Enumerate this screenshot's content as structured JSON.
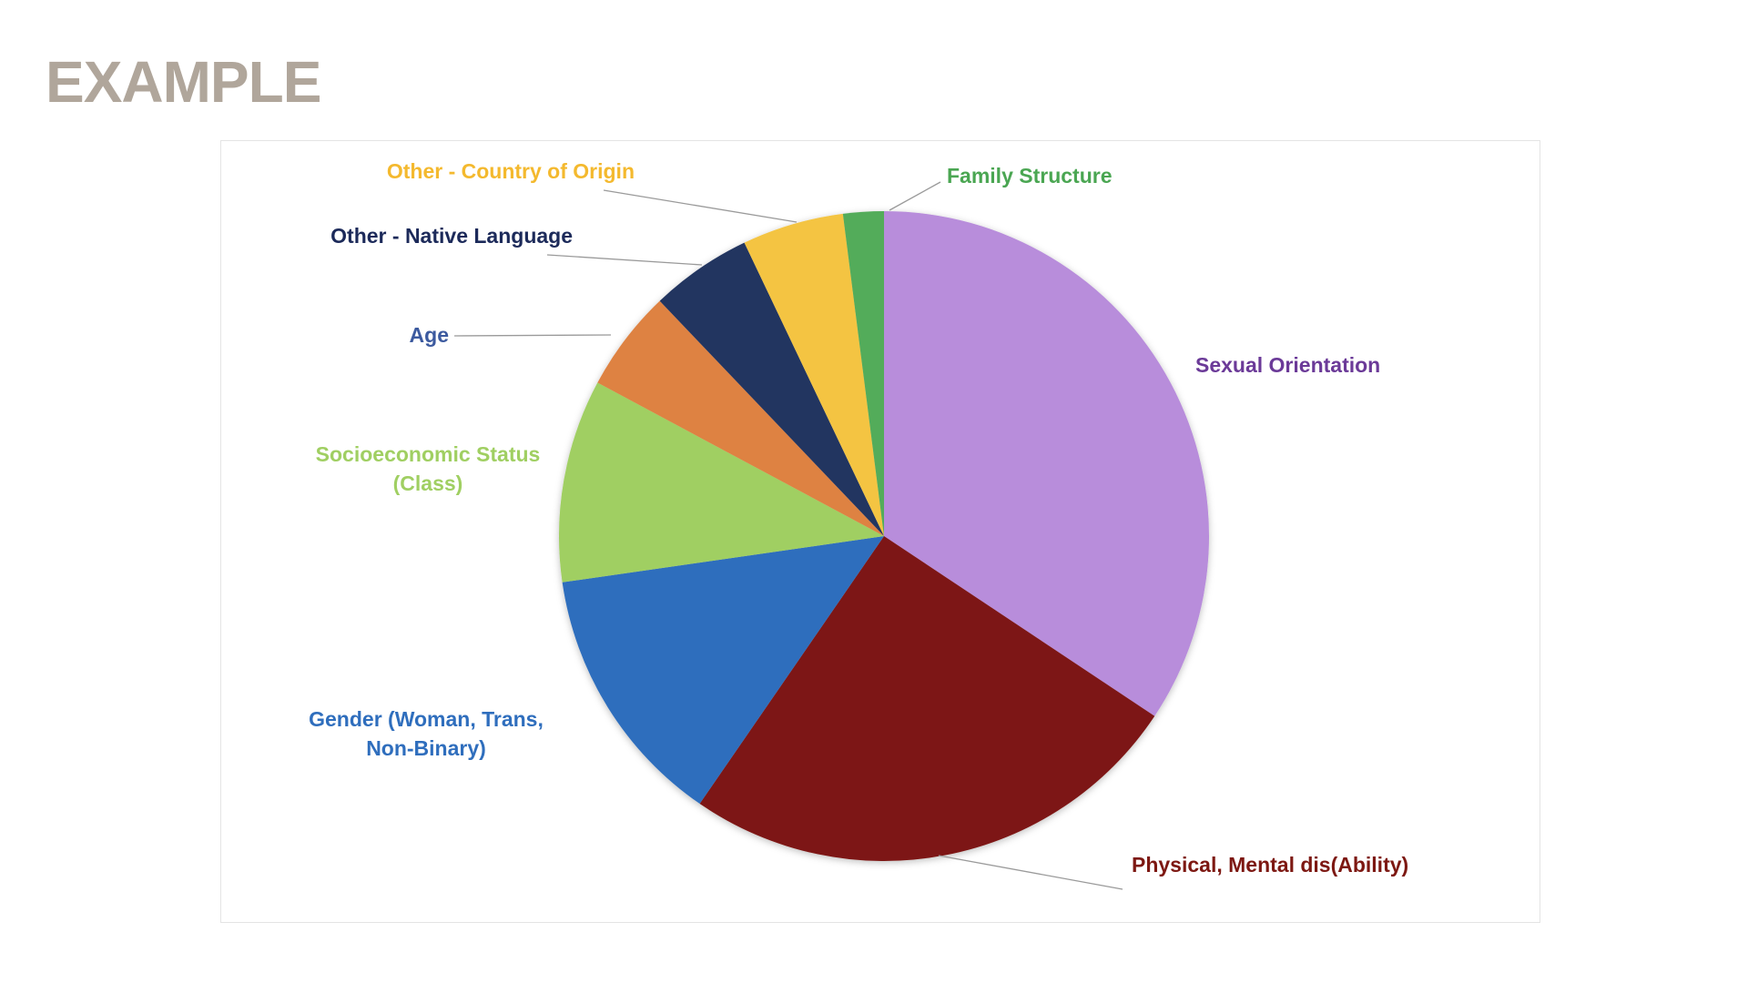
{
  "page": {
    "title": "EXAMPLE"
  },
  "chart_data": {
    "type": "pie",
    "title": "",
    "categories": [
      "Sexual Orientation",
      "Physical, Mental dis(Ability)",
      "Gender (Woman, Trans, Non-Binary)",
      "Socioeconomic Status (Class)",
      "Age",
      "Other - Native Language",
      "Other - Country of Origin",
      "Family Structure"
    ],
    "values": [
      34,
      25,
      13,
      10,
      5,
      5,
      5,
      2
    ],
    "colors": [
      "#b88ddb",
      "#7d1812",
      "#2f6ebd",
      "#a0cf62",
      "#de8242",
      "#233460",
      "#f4c443",
      "#53ac5a"
    ],
    "label_colors": [
      "#6b3a98",
      "#7d1812",
      "#2f6ebd",
      "#a0cf62",
      "#3c5a9f",
      "#1c2a5a",
      "#f4b92e",
      "#4aa652"
    ],
    "label_lines": [
      [
        "Sexual Orientation"
      ],
      [
        "Physical, Mental dis(Ability)"
      ],
      [
        "Gender (Woman, Trans,",
        "Non-Binary)"
      ],
      [
        "Socioeconomic Status",
        "(Class)"
      ],
      [
        "Age"
      ],
      [
        "Other - Native Language"
      ],
      [
        "Other - Country of Origin"
      ],
      [
        "Family Structure"
      ]
    ],
    "start_angle": "12 o'clock",
    "direction": "clockwise",
    "legend": "none",
    "data_labels": "category names outside slices with leader lines"
  }
}
